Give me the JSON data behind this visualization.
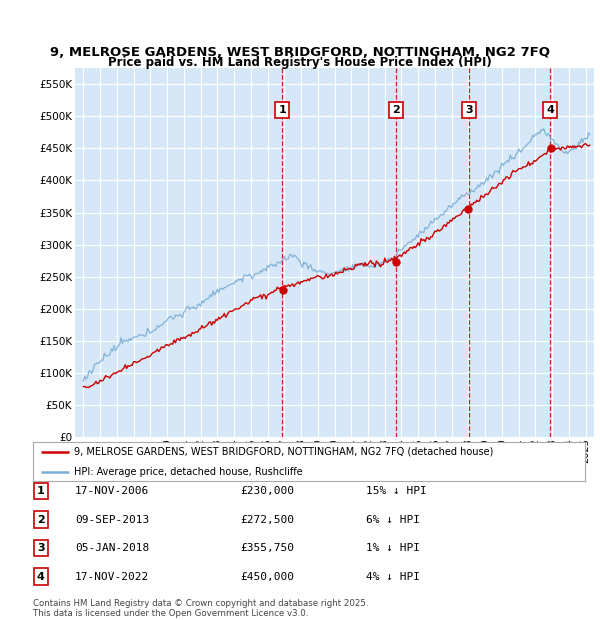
{
  "title": "9, MELROSE GARDENS, WEST BRIDGFORD, NOTTINGHAM, NG2 7FQ",
  "subtitle": "Price paid vs. HM Land Registry's House Price Index (HPI)",
  "ylim": [
    0,
    575000
  ],
  "yticks": [
    0,
    50000,
    100000,
    150000,
    200000,
    250000,
    300000,
    350000,
    400000,
    450000,
    500000,
    550000
  ],
  "xlim_start": 1994.5,
  "xlim_end": 2025.5,
  "bg_color": "#d6e8f7",
  "grid_color": "#ffffff",
  "sales": [
    {
      "num": 1,
      "date_str": "17-NOV-2006",
      "year": 2006.88,
      "price": 230000,
      "pct": "15%",
      "dir": "↓"
    },
    {
      "num": 2,
      "date_str": "09-SEP-2013",
      "year": 2013.69,
      "price": 272500,
      "pct": "6%",
      "dir": "↓"
    },
    {
      "num": 3,
      "date_str": "05-JAN-2018",
      "year": 2018.03,
      "price": 355750,
      "pct": "1%",
      "dir": "↓"
    },
    {
      "num": 4,
      "date_str": "17-NOV-2022",
      "year": 2022.88,
      "price": 450000,
      "pct": "4%",
      "dir": "↓"
    }
  ],
  "legend_label_red": "9, MELROSE GARDENS, WEST BRIDGFORD, NOTTINGHAM, NG2 7FQ (detached house)",
  "legend_label_blue": "HPI: Average price, detached house, Rushcliffe",
  "footer1": "Contains HM Land Registry data © Crown copyright and database right 2025.",
  "footer2": "This data is licensed under the Open Government Licence v3.0.",
  "red_color": "#cc0000",
  "blue_color": "#7aadd4",
  "dashed_color": "#cc0000",
  "table_data": [
    [
      1,
      "17-NOV-2006",
      "£230,000",
      "15% ↓ HPI"
    ],
    [
      2,
      "09-SEP-2013",
      "£272,500",
      "6% ↓ HPI"
    ],
    [
      3,
      "05-JAN-2018",
      "£355,750",
      "1% ↓ HPI"
    ],
    [
      4,
      "17-NOV-2022",
      "£450,000",
      "4% ↓ HPI"
    ]
  ]
}
